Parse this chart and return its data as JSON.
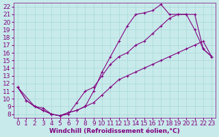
{
  "xlabel": "Windchill (Refroidissement éolien,°C)",
  "bg_color": "#c8eaea",
  "line_color": "#800080",
  "marker": "+",
  "xlim": [
    -0.5,
    23.5
  ],
  "ylim": [
    7.5,
    22.5
  ],
  "xticks": [
    0,
    1,
    2,
    3,
    4,
    5,
    6,
    7,
    8,
    9,
    10,
    11,
    12,
    13,
    14,
    15,
    16,
    17,
    18,
    19,
    20,
    21,
    22,
    23
  ],
  "yticks": [
    8,
    9,
    10,
    11,
    12,
    13,
    14,
    15,
    16,
    17,
    18,
    19,
    20,
    21,
    22
  ],
  "grid_color": "#a8d8d8",
  "font_size": 6.5,
  "line1_x": [
    0,
    1,
    2,
    3,
    4,
    5,
    6,
    7,
    8,
    9,
    10,
    11,
    12,
    13,
    14,
    15,
    16,
    17,
    18,
    19,
    20,
    21,
    22,
    23
  ],
  "line1_y": [
    11.5,
    9.8,
    9.0,
    8.5,
    8.0,
    7.8,
    8.2,
    8.5,
    9.0,
    11.0,
    13.5,
    15.5,
    17.5,
    19.5,
    21.0,
    21.2,
    21.5,
    22.3,
    21.0,
    21.0,
    21.0,
    19.0,
    16.5,
    15.5
  ],
  "line2_x": [
    0,
    2,
    3,
    4,
    5,
    6,
    7,
    8,
    9,
    10,
    11,
    12,
    13,
    14,
    15,
    16,
    17,
    18,
    19,
    20,
    21,
    22,
    23
  ],
  "line2_y": [
    11.5,
    9.0,
    8.8,
    8.0,
    7.8,
    8.0,
    9.5,
    11.0,
    11.5,
    13.0,
    14.5,
    15.5,
    16.0,
    17.0,
    17.5,
    18.5,
    19.5,
    20.5,
    21.0,
    21.0,
    21.0,
    16.5,
    15.5
  ],
  "line3_x": [
    0,
    1,
    2,
    3,
    4,
    5,
    6,
    7,
    8,
    9,
    10,
    11,
    12,
    13,
    14,
    15,
    16,
    17,
    18,
    19,
    20,
    21,
    22,
    23
  ],
  "line3_y": [
    11.5,
    9.8,
    9.0,
    8.5,
    8.0,
    7.8,
    8.2,
    8.5,
    9.0,
    9.5,
    10.5,
    11.5,
    12.5,
    13.0,
    13.5,
    14.0,
    14.5,
    15.0,
    15.5,
    16.0,
    16.5,
    17.0,
    17.5,
    15.5
  ]
}
